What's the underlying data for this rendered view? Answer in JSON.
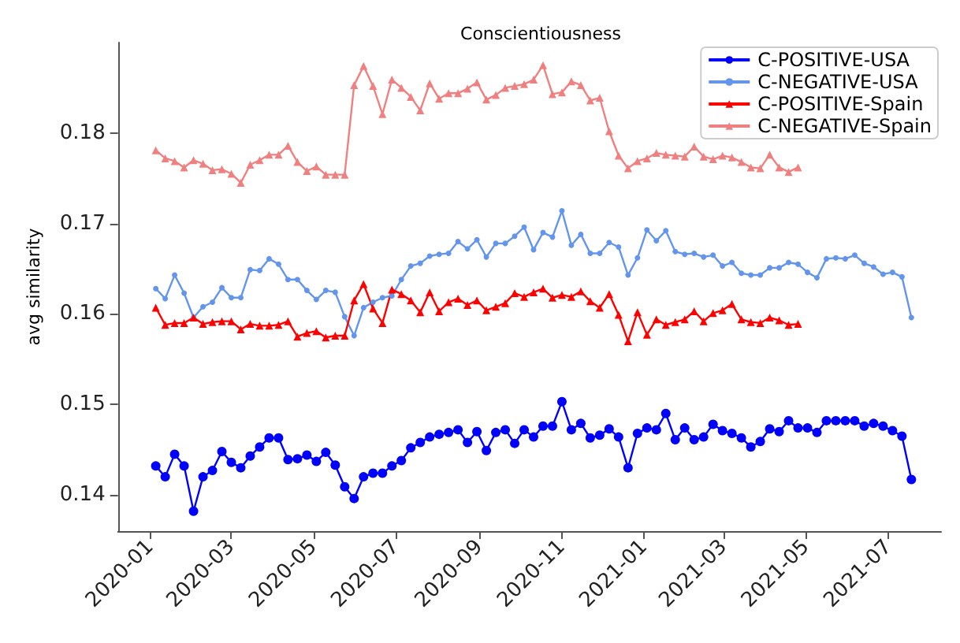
{
  "chart_data": {
    "type": "line",
    "title": "Conscientiousness",
    "ylabel": "avg similarity",
    "x": [
      "2020-01-05",
      "2020-01-12",
      "2020-01-19",
      "2020-01-26",
      "2020-02-02",
      "2020-02-09",
      "2020-02-16",
      "2020-02-23",
      "2020-03-01",
      "2020-03-08",
      "2020-03-15",
      "2020-03-22",
      "2020-03-29",
      "2020-04-05",
      "2020-04-12",
      "2020-04-19",
      "2020-04-26",
      "2020-05-03",
      "2020-05-10",
      "2020-05-17",
      "2020-05-24",
      "2020-05-31",
      "2020-06-07",
      "2020-06-14",
      "2020-06-21",
      "2020-06-28",
      "2020-07-05",
      "2020-07-12",
      "2020-07-19",
      "2020-07-26",
      "2020-08-02",
      "2020-08-09",
      "2020-08-16",
      "2020-08-23",
      "2020-08-30",
      "2020-09-06",
      "2020-09-13",
      "2020-09-20",
      "2020-09-27",
      "2020-10-04",
      "2020-10-11",
      "2020-10-18",
      "2020-10-25",
      "2020-11-01",
      "2020-11-08",
      "2020-11-15",
      "2020-11-22",
      "2020-11-29",
      "2020-12-06",
      "2020-12-13",
      "2020-12-20",
      "2020-12-27",
      "2021-01-03",
      "2021-01-10",
      "2021-01-17",
      "2021-01-24",
      "2021-01-31",
      "2021-02-07",
      "2021-02-14",
      "2021-02-21",
      "2021-02-28",
      "2021-03-07",
      "2021-03-14",
      "2021-03-21",
      "2021-03-28",
      "2021-04-04",
      "2021-04-11",
      "2021-04-18",
      "2021-04-25",
      "2021-05-02",
      "2021-05-09",
      "2021-05-16",
      "2021-05-23",
      "2021-05-30",
      "2021-06-06",
      "2021-06-13",
      "2021-06-20",
      "2021-06-27",
      "2021-07-04",
      "2021-07-11",
      "2021-07-18"
    ],
    "xlim": [
      "2019-12-08",
      "2021-08-09"
    ],
    "xticks": [
      "2020-01",
      "2020-03",
      "2020-05",
      "2020-07",
      "2020-09",
      "2020-11",
      "2021-01",
      "2021-03",
      "2021-05",
      "2021-07"
    ],
    "ylim": [
      0.136,
      0.19
    ],
    "yticks": [
      0.14,
      0.15,
      0.16,
      0.17,
      0.18
    ],
    "grid": false,
    "legend": "top right",
    "line_style": "solid",
    "series": [
      {
        "name": "C-POSITIVE-USA",
        "color": "#0000ff",
        "marker": "circle",
        "values": [
          0.1432,
          0.142,
          0.1445,
          0.1432,
          0.1382,
          0.142,
          0.1427,
          0.1448,
          0.1436,
          0.143,
          0.1443,
          0.1453,
          0.1463,
          0.1463,
          0.1439,
          0.144,
          0.1444,
          0.1437,
          0.1447,
          0.1433,
          0.1409,
          0.1396,
          0.142,
          0.1424,
          0.1424,
          0.1432,
          0.1438,
          0.1452,
          0.1458,
          0.1464,
          0.1467,
          0.1469,
          0.1472,
          0.1458,
          0.147,
          0.1449,
          0.1469,
          0.1472,
          0.1457,
          0.1472,
          0.1464,
          0.1476,
          0.1476,
          0.1503,
          0.1472,
          0.1479,
          0.1463,
          0.1466,
          0.1473,
          0.1464,
          0.143,
          0.1468,
          0.1474,
          0.1472,
          0.149,
          0.1461,
          0.1474,
          0.1461,
          0.1464,
          0.1478,
          0.1471,
          0.1468,
          0.1463,
          0.1453,
          0.1459,
          0.1473,
          0.147,
          0.1482,
          0.1474,
          0.1474,
          0.1469,
          0.1482,
          0.1482,
          0.1482,
          0.1482,
          0.1476,
          0.1479,
          0.1476,
          0.1471,
          0.1465,
          0.1417
        ]
      },
      {
        "name": "C-NEGATIVE-USA",
        "color": "#6495ed",
        "marker": "circle",
        "values": [
          0.1628,
          0.1617,
          0.1643,
          0.1623,
          0.1596,
          0.1608,
          0.1613,
          0.1629,
          0.1618,
          0.1618,
          0.1649,
          0.1648,
          0.1661,
          0.1655,
          0.1638,
          0.1638,
          0.1626,
          0.1616,
          0.1626,
          0.1624,
          0.1597,
          0.1576,
          0.1607,
          0.1613,
          0.1618,
          0.162,
          0.1638,
          0.1653,
          0.1656,
          0.1664,
          0.1666,
          0.1667,
          0.168,
          0.1672,
          0.1682,
          0.1663,
          0.1678,
          0.1678,
          0.1686,
          0.1696,
          0.1671,
          0.169,
          0.1685,
          0.1714,
          0.1676,
          0.1688,
          0.1667,
          0.1667,
          0.1679,
          0.1674,
          0.1643,
          0.1662,
          0.1693,
          0.1681,
          0.1692,
          0.1669,
          0.1666,
          0.1667,
          0.1663,
          0.1665,
          0.1653,
          0.1657,
          0.1645,
          0.1643,
          0.1643,
          0.1651,
          0.1651,
          0.1657,
          0.1655,
          0.1646,
          0.164,
          0.1661,
          0.1662,
          0.1661,
          0.1665,
          0.1656,
          0.1652,
          0.1644,
          0.1646,
          0.1641,
          0.1596
        ]
      },
      {
        "name": "C-POSITIVE-Spain",
        "color": "#ff0000",
        "marker": "triangle",
        "values": [
          0.1607,
          0.1588,
          0.159,
          0.159,
          0.1596,
          0.1589,
          0.1591,
          0.1592,
          0.1592,
          0.1583,
          0.1589,
          0.1587,
          0.1587,
          0.1588,
          0.1592,
          0.1575,
          0.1579,
          0.1581,
          0.1574,
          0.1576,
          0.1576,
          0.1615,
          0.1633,
          0.1606,
          0.159,
          0.1627,
          0.1622,
          0.1615,
          0.1602,
          0.1624,
          0.1603,
          0.1613,
          0.1617,
          0.161,
          0.1615,
          0.1604,
          0.1608,
          0.1612,
          0.1623,
          0.1619,
          0.1624,
          0.1628,
          0.1618,
          0.1621,
          0.1619,
          0.1625,
          0.1614,
          0.1607,
          0.1622,
          0.1599,
          0.157,
          0.1602,
          0.1577,
          0.1594,
          0.1588,
          0.1591,
          0.1594,
          0.1603,
          0.1592,
          0.1601,
          0.1604,
          0.1611,
          0.1594,
          0.1591,
          0.159,
          0.1596,
          0.1593,
          0.1588,
          0.1589,
          null,
          null,
          null,
          null,
          null,
          null,
          null,
          null,
          null,
          null,
          null,
          null
        ]
      },
      {
        "name": "C-NEGATIVE-Spain",
        "color": "#f08080",
        "marker": "triangle",
        "values": [
          0.1781,
          0.1772,
          0.1769,
          0.1762,
          0.177,
          0.1766,
          0.1759,
          0.176,
          0.1755,
          0.1745,
          0.1765,
          0.177,
          0.1776,
          0.1776,
          0.1786,
          0.1768,
          0.1758,
          0.1763,
          0.1754,
          0.1754,
          0.1754,
          0.1853,
          0.1874,
          0.1852,
          0.1821,
          0.1859,
          0.185,
          0.184,
          0.1825,
          0.1855,
          0.1838,
          0.1844,
          0.1844,
          0.1849,
          0.1856,
          0.1837,
          0.1842,
          0.185,
          0.1852,
          0.1854,
          0.1859,
          0.1875,
          0.1843,
          0.1845,
          0.1857,
          0.1853,
          0.1836,
          0.1839,
          0.1802,
          0.1775,
          0.1761,
          0.1769,
          0.1772,
          0.1778,
          0.1776,
          0.1775,
          0.1774,
          0.1785,
          0.1774,
          0.1771,
          0.1775,
          0.1773,
          0.1768,
          0.1762,
          0.1761,
          0.1776,
          0.1762,
          0.1757,
          0.1762,
          null,
          null,
          null,
          null,
          null,
          null,
          null,
          null,
          null,
          null,
          null,
          null
        ]
      }
    ]
  }
}
